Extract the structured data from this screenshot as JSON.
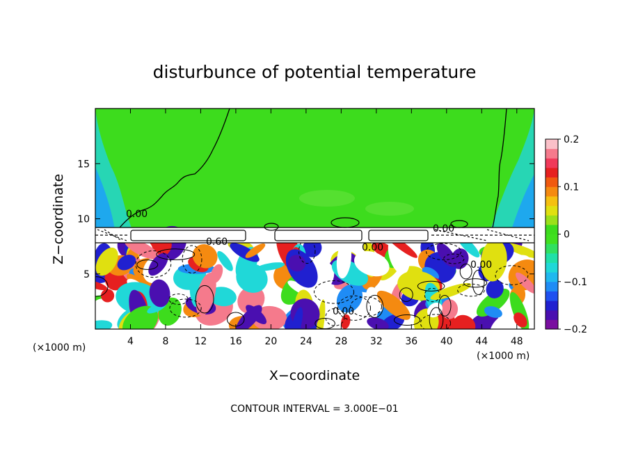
{
  "chart_data": {
    "type": "heatmap",
    "title": "disturbunce of potential temperature",
    "xlabel": "X−coordinate",
    "ylabel": "Z−coordinate",
    "x_unit": "(×1000 m)",
    "y_unit": "(×1000 m)",
    "xlim": [
      0,
      50
    ],
    "ylim": [
      0,
      20
    ],
    "x_ticks": [
      4,
      8,
      12,
      16,
      20,
      24,
      28,
      32,
      36,
      40,
      44,
      48
    ],
    "x_tick_labels": [
      "4",
      "8",
      "12",
      "16",
      "20",
      "24",
      "28",
      "32",
      "36",
      "40",
      "44",
      "48"
    ],
    "y_ticks": [
      5,
      10,
      15
    ],
    "y_tick_labels": [
      "5",
      "10",
      "15"
    ],
    "colorbar": {
      "range": [
        -0.2,
        0.2
      ],
      "ticks": [
        -0.2,
        -0.1,
        0,
        0.1,
        0.2
      ],
      "tick_labels": [
        "−0.2",
        "−0.1",
        "0",
        "0.1",
        "0.2"
      ],
      "colors": [
        "#7a0fa0",
        "#4a0fb0",
        "#2020d0",
        "#1f50f0",
        "#1f8cf5",
        "#20b8ef",
        "#20d8d8",
        "#20e0a8",
        "#30e060",
        "#40e020",
        "#3ddc1d",
        "#9be01a",
        "#e0e010",
        "#f5c010",
        "#f58a10",
        "#f05a10",
        "#e62020",
        "#f03a5a",
        "#f57a8c",
        "#fac0c8"
      ]
    },
    "contour_interval_text": "CONTOUR INTERVAL = 3.000E−01",
    "contour_labels": [
      "0.00",
      "0.60",
      "0.00",
      "0.00",
      "0.00",
      "0.00"
    ]
  }
}
